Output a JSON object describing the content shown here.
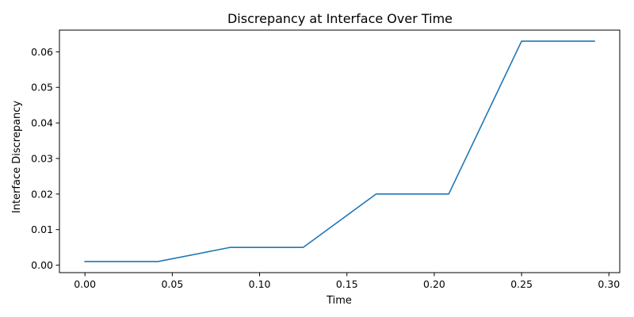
{
  "chart_data": {
    "type": "line",
    "title": "Discrepancy at Interface Over Time",
    "xlabel": "Time",
    "ylabel": "Interface Discrepancy",
    "xlim": [
      -0.0146,
      0.3062
    ],
    "ylim": [
      -0.0021,
      0.0661
    ],
    "xticks": [
      0.0,
      0.05,
      0.1,
      0.15,
      0.2,
      0.25,
      0.3
    ],
    "xtick_labels": [
      "0.00",
      "0.05",
      "0.10",
      "0.15",
      "0.20",
      "0.25",
      "0.30"
    ],
    "yticks": [
      0.0,
      0.01,
      0.02,
      0.03,
      0.04,
      0.05,
      0.06
    ],
    "ytick_labels": [
      "0.00",
      "0.01",
      "0.02",
      "0.03",
      "0.04",
      "0.05",
      "0.06"
    ],
    "grid": false,
    "legend": "none",
    "series": [
      {
        "color": "#1f77b4",
        "x": [
          0.0,
          0.0417,
          0.0833,
          0.125,
          0.1667,
          0.2083,
          0.25,
          0.2917
        ],
        "y": [
          0.001,
          0.001,
          0.005,
          0.005,
          0.02,
          0.02,
          0.063,
          0.063
        ]
      }
    ]
  }
}
